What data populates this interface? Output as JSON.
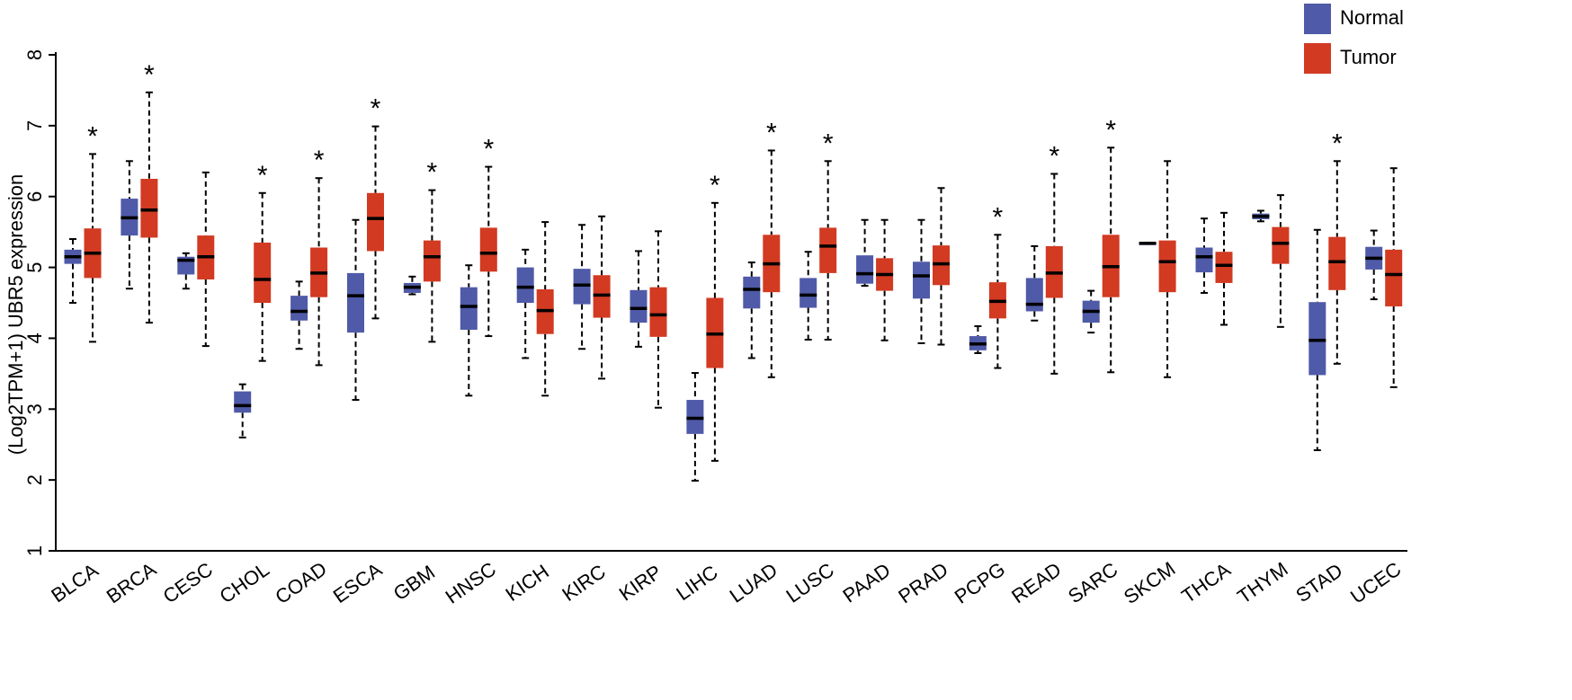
{
  "chart_data": {
    "type": "box",
    "title": "",
    "xlabel": "",
    "ylabel": "(Log2TPM+1) UBR5 expression",
    "ylim": [
      1,
      8
    ],
    "yticks": [
      "1",
      "2",
      "3",
      "4",
      "5",
      "6",
      "7",
      "8"
    ],
    "significance_symbol": "*",
    "legend": [
      {
        "name": "Normal",
        "color": "#4f5aa8"
      },
      {
        "name": "Tumor",
        "color": "#d23a22"
      }
    ],
    "categories": [
      "BLCA",
      "BRCA",
      "CESC",
      "CHOL",
      "COAD",
      "ESCA",
      "GBM",
      "HNSC",
      "KICH",
      "KIRC",
      "KIRP",
      "LIHC",
      "LUAD",
      "LUSC",
      "PAAD",
      "PRAD",
      "PCPG",
      "READ",
      "SARC",
      "SKCM",
      "THCA",
      "THYM",
      "STAD",
      "UCEC"
    ],
    "significant": [
      true,
      true,
      false,
      true,
      true,
      true,
      true,
      true,
      false,
      false,
      false,
      true,
      true,
      true,
      false,
      false,
      true,
      true,
      true,
      false,
      false,
      false,
      true,
      false
    ],
    "series": [
      {
        "name": "Normal",
        "boxes": [
          {
            "min": 4.5,
            "q1": 5.05,
            "median": 5.15,
            "q3": 5.25,
            "max": 5.4
          },
          {
            "min": 4.7,
            "q1": 5.45,
            "median": 5.7,
            "q3": 5.97,
            "max": 6.5
          },
          {
            "min": 4.7,
            "q1": 4.9,
            "median": 5.1,
            "q3": 5.15,
            "max": 5.2
          },
          {
            "min": 2.6,
            "q1": 2.95,
            "median": 3.05,
            "q3": 3.25,
            "max": 3.35
          },
          {
            "min": 3.85,
            "q1": 4.25,
            "median": 4.38,
            "q3": 4.6,
            "max": 4.8
          },
          {
            "min": 3.13,
            "q1": 4.08,
            "median": 4.6,
            "q3": 4.92,
            "max": 5.67
          },
          {
            "min": 4.62,
            "q1": 4.64,
            "median": 4.72,
            "q3": 4.78,
            "max": 4.87
          },
          {
            "min": 3.19,
            "q1": 4.12,
            "median": 4.45,
            "q3": 4.72,
            "max": 5.03
          },
          {
            "min": 3.72,
            "q1": 4.5,
            "median": 4.72,
            "q3": 5.0,
            "max": 5.25
          },
          {
            "min": 3.85,
            "q1": 4.48,
            "median": 4.75,
            "q3": 4.98,
            "max": 5.6
          },
          {
            "min": 3.88,
            "q1": 4.22,
            "median": 4.42,
            "q3": 4.68,
            "max": 5.23
          },
          {
            "min": 1.99,
            "q1": 2.65,
            "median": 2.87,
            "q3": 3.13,
            "max": 3.51
          },
          {
            "min": 3.72,
            "q1": 4.42,
            "median": 4.69,
            "q3": 4.87,
            "max": 5.07
          },
          {
            "min": 3.98,
            "q1": 4.43,
            "median": 4.61,
            "q3": 4.85,
            "max": 5.22
          },
          {
            "min": 4.74,
            "q1": 4.77,
            "median": 4.91,
            "q3": 5.17,
            "max": 5.67
          },
          {
            "min": 3.93,
            "q1": 4.56,
            "median": 4.88,
            "q3": 5.08,
            "max": 5.67
          },
          {
            "min": 3.79,
            "q1": 3.83,
            "median": 3.92,
            "q3": 4.03,
            "max": 4.17
          },
          {
            "min": 4.25,
            "q1": 4.38,
            "median": 4.48,
            "q3": 4.85,
            "max": 5.3
          },
          {
            "min": 4.08,
            "q1": 4.22,
            "median": 4.38,
            "q3": 4.53,
            "max": 4.67
          },
          {
            "min": 5.33,
            "q1": 5.33,
            "median": 5.34,
            "q3": 5.34,
            "max": 5.35
          },
          {
            "min": 4.64,
            "q1": 4.93,
            "median": 5.15,
            "q3": 5.28,
            "max": 5.69
          },
          {
            "min": 5.65,
            "q1": 5.68,
            "median": 5.72,
            "q3": 5.76,
            "max": 5.8
          },
          {
            "min": 2.42,
            "q1": 3.48,
            "median": 3.97,
            "q3": 4.51,
            "max": 5.53
          },
          {
            "min": 4.55,
            "q1": 4.97,
            "median": 5.13,
            "q3": 5.29,
            "max": 5.52
          }
        ]
      },
      {
        "name": "Tumor",
        "boxes": [
          {
            "min": 3.95,
            "q1": 4.85,
            "median": 5.2,
            "q3": 5.55,
            "max": 6.6
          },
          {
            "min": 4.22,
            "q1": 5.42,
            "median": 5.81,
            "q3": 6.25,
            "max": 7.47
          },
          {
            "min": 3.89,
            "q1": 4.83,
            "median": 5.15,
            "q3": 5.45,
            "max": 6.34
          },
          {
            "min": 3.68,
            "q1": 4.5,
            "median": 4.83,
            "q3": 5.35,
            "max": 6.05
          },
          {
            "min": 3.62,
            "q1": 4.58,
            "median": 4.92,
            "q3": 5.28,
            "max": 6.26
          },
          {
            "min": 4.28,
            "q1": 5.23,
            "median": 5.69,
            "q3": 6.05,
            "max": 6.99
          },
          {
            "min": 3.95,
            "q1": 4.8,
            "median": 5.15,
            "q3": 5.38,
            "max": 6.09
          },
          {
            "min": 4.03,
            "q1": 4.94,
            "median": 5.2,
            "q3": 5.56,
            "max": 6.42
          },
          {
            "min": 3.19,
            "q1": 4.06,
            "median": 4.39,
            "q3": 4.69,
            "max": 5.64
          },
          {
            "min": 3.43,
            "q1": 4.29,
            "median": 4.61,
            "q3": 4.89,
            "max": 5.72
          },
          {
            "min": 3.02,
            "q1": 4.02,
            "median": 4.33,
            "q3": 4.72,
            "max": 5.51
          },
          {
            "min": 2.27,
            "q1": 3.58,
            "median": 4.06,
            "q3": 4.57,
            "max": 5.91
          },
          {
            "min": 3.45,
            "q1": 4.65,
            "median": 5.05,
            "q3": 5.46,
            "max": 6.65
          },
          {
            "min": 3.98,
            "q1": 4.92,
            "median": 5.3,
            "q3": 5.56,
            "max": 6.5
          },
          {
            "min": 3.97,
            "q1": 4.67,
            "median": 4.9,
            "q3": 5.13,
            "max": 5.67
          },
          {
            "min": 3.91,
            "q1": 4.75,
            "median": 5.05,
            "q3": 5.31,
            "max": 6.12
          },
          {
            "min": 3.58,
            "q1": 4.28,
            "median": 4.52,
            "q3": 4.79,
            "max": 5.46
          },
          {
            "min": 3.5,
            "q1": 4.57,
            "median": 4.92,
            "q3": 5.3,
            "max": 6.32
          },
          {
            "min": 3.52,
            "q1": 4.58,
            "median": 5.01,
            "q3": 5.46,
            "max": 6.69
          },
          {
            "min": 3.45,
            "q1": 4.65,
            "median": 5.08,
            "q3": 5.38,
            "max": 6.5
          },
          {
            "min": 4.19,
            "q1": 4.78,
            "median": 5.03,
            "q3": 5.22,
            "max": 5.77
          },
          {
            "min": 4.16,
            "q1": 5.05,
            "median": 5.34,
            "q3": 5.57,
            "max": 6.02
          },
          {
            "min": 3.64,
            "q1": 4.68,
            "median": 5.08,
            "q3": 5.43,
            "max": 6.5
          },
          {
            "min": 3.31,
            "q1": 4.45,
            "median": 4.9,
            "q3": 5.25,
            "max": 6.4
          }
        ]
      }
    ]
  }
}
